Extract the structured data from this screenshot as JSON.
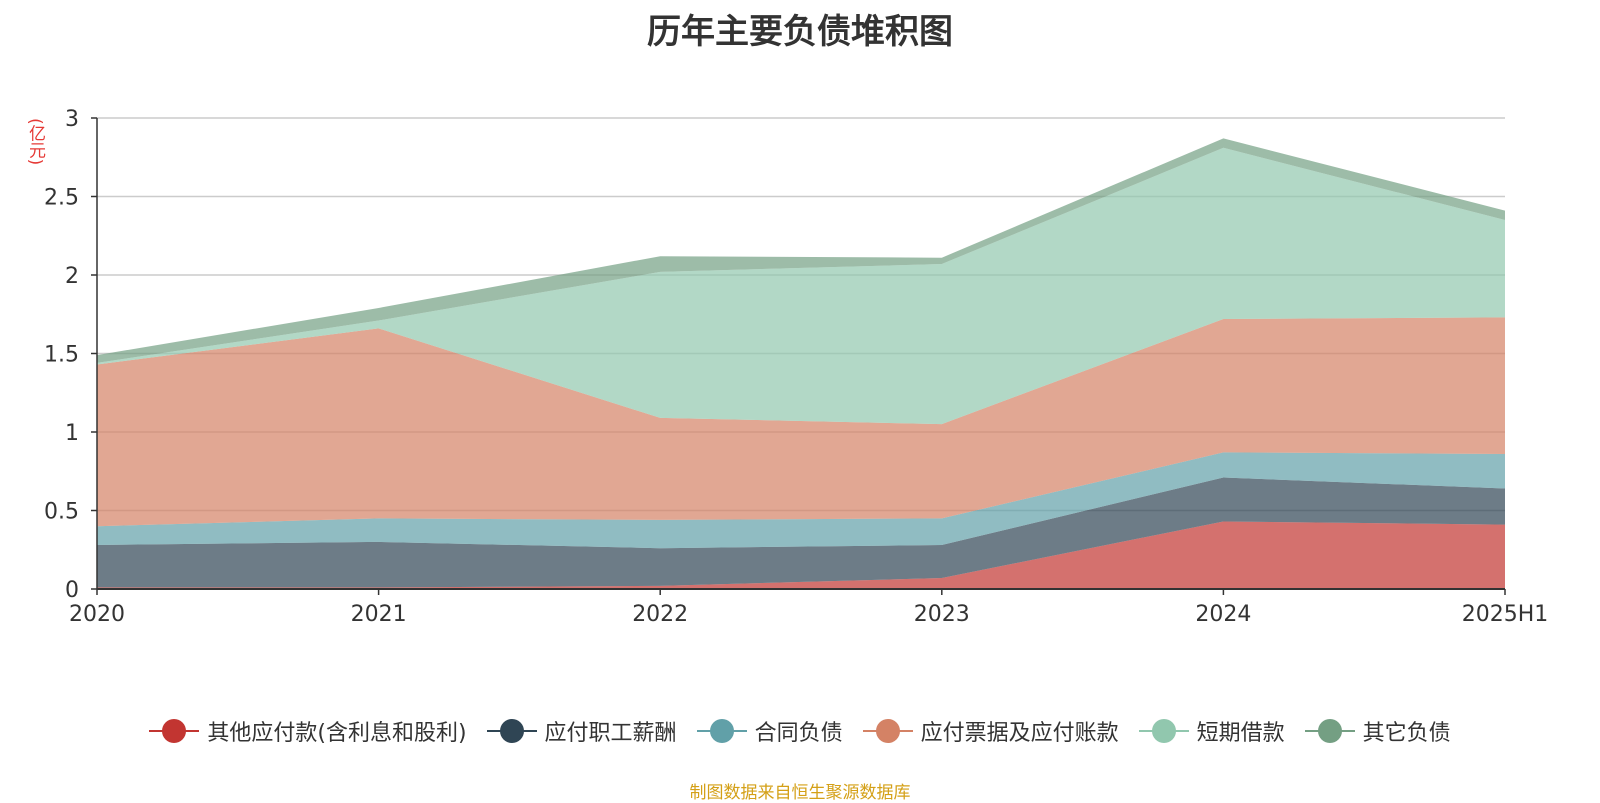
{
  "chart_data": {
    "type": "area",
    "stacked": true,
    "title": "历年主要负债堆积图",
    "ylabel": "(亿元)",
    "categories": [
      "2020",
      "2021",
      "2022",
      "2023",
      "2024",
      "2025H1"
    ],
    "ylim": [
      0,
      3
    ],
    "yticks": [
      "0",
      "0.5",
      "1",
      "1.5",
      "2",
      "2.5",
      "3"
    ],
    "grid": true,
    "legend_position": "bottom",
    "series": [
      {
        "name": "其他应付款(含利息和股利)",
        "color": "#c23531",
        "values": [
          0.01,
          0.01,
          0.02,
          0.07,
          0.43,
          0.41
        ]
      },
      {
        "name": "应付职工薪酬",
        "color": "#2f4554",
        "values": [
          0.27,
          0.29,
          0.24,
          0.21,
          0.28,
          0.23
        ]
      },
      {
        "name": "合同负债",
        "color": "#61a0a8",
        "values": [
          0.12,
          0.15,
          0.18,
          0.17,
          0.16,
          0.22
        ]
      },
      {
        "name": "应付票据及应付账款",
        "color": "#d48265",
        "values": [
          1.03,
          1.21,
          0.65,
          0.6,
          0.85,
          0.87
        ]
      },
      {
        "name": "短期借款",
        "color": "#91c7ae",
        "values": [
          0.01,
          0.05,
          0.93,
          1.02,
          1.09,
          0.62
        ]
      },
      {
        "name": "其它负债",
        "color": "#749f83",
        "values": [
          0.05,
          0.08,
          0.1,
          0.04,
          0.06,
          0.06
        ]
      }
    ]
  },
  "footer": {
    "source": "制图数据来自恒生聚源数据库"
  }
}
